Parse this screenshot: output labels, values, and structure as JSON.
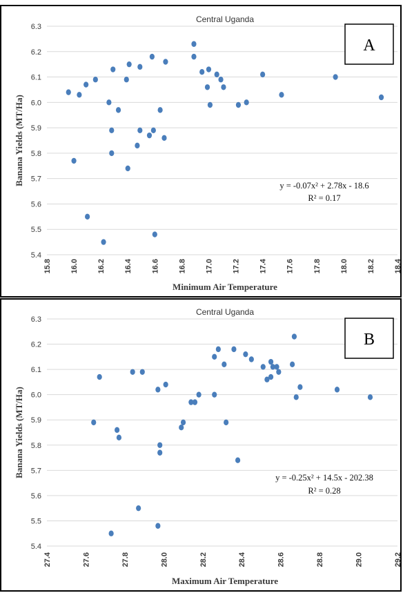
{
  "colors": {
    "points": "#4a7ebb",
    "trendline": "#1f497d",
    "grid": "#d9d9d9"
  },
  "chart_data": [
    {
      "panel": "A",
      "type": "scatter",
      "title": "Central Uganda",
      "xlabel": "Minimum Air Temperature",
      "ylabel": "Banana Yields (MT/Ha)",
      "xlim": [
        15.8,
        18.4
      ],
      "ylim": [
        5.4,
        6.3
      ],
      "x_ticks": [
        "15.8",
        "16.0",
        "16.2",
        "16.4",
        "16.6",
        "16.8",
        "17.0",
        "17.2",
        "17.4",
        "17.6",
        "17.8",
        "18.0",
        "18.2",
        "18.4"
      ],
      "y_ticks": [
        "5.4",
        "5.5",
        "5.6",
        "5.7",
        "5.8",
        "5.9",
        "6.0",
        "6.1",
        "6.2",
        "6.3"
      ],
      "grid": "horizontal",
      "points": [
        [
          15.96,
          6.04
        ],
        [
          16.0,
          5.77
        ],
        [
          16.04,
          6.03
        ],
        [
          16.09,
          6.07
        ],
        [
          16.1,
          5.55
        ],
        [
          16.16,
          6.09
        ],
        [
          16.22,
          5.45
        ],
        [
          16.26,
          6.0
        ],
        [
          16.28,
          5.8
        ],
        [
          16.28,
          5.89
        ],
        [
          16.29,
          6.13
        ],
        [
          16.33,
          5.97
        ],
        [
          16.39,
          6.09
        ],
        [
          16.4,
          5.74
        ],
        [
          16.41,
          6.15
        ],
        [
          16.47,
          5.83
        ],
        [
          16.49,
          6.14
        ],
        [
          16.49,
          5.89
        ],
        [
          16.56,
          5.87
        ],
        [
          16.58,
          6.18
        ],
        [
          16.59,
          5.89
        ],
        [
          16.6,
          5.48
        ],
        [
          16.64,
          5.97
        ],
        [
          16.67,
          5.86
        ],
        [
          16.68,
          6.16
        ],
        [
          16.89,
          6.23
        ],
        [
          16.89,
          6.18
        ],
        [
          16.95,
          6.12
        ],
        [
          16.99,
          6.06
        ],
        [
          17.0,
          6.13
        ],
        [
          17.01,
          5.99
        ],
        [
          17.06,
          6.11
        ],
        [
          17.09,
          6.09
        ],
        [
          17.11,
          6.06
        ],
        [
          17.22,
          5.99
        ],
        [
          17.28,
          6.0
        ],
        [
          17.4,
          6.11
        ],
        [
          17.54,
          6.03
        ],
        [
          17.94,
          6.1
        ],
        [
          18.28,
          6.02
        ]
      ],
      "trendline": {
        "type": "polynomial",
        "coefficients": [
          -0.07,
          2.78,
          -18.6
        ],
        "x_range": [
          15.96,
          18.28
        ]
      },
      "equation": "y = -0.07x² + 2.78x - 18.6",
      "r_squared": "R² = 0.17",
      "badge": "A"
    },
    {
      "panel": "B",
      "type": "scatter",
      "title": "Central Uganda",
      "xlabel": "Maximum Air Temperature",
      "ylabel": "Banana Yields (MT/Ha)",
      "xlim": [
        27.4,
        29.2
      ],
      "ylim": [
        5.4,
        6.3
      ],
      "x_ticks": [
        "27.4",
        "27.6",
        "27.8",
        "28.0",
        "28.2",
        "28.4",
        "28.6",
        "28.8",
        "29.0",
        "29.2"
      ],
      "y_ticks": [
        "5.4",
        "5.5",
        "5.6",
        "5.7",
        "5.8",
        "5.9",
        "6.0",
        "6.1",
        "6.2",
        "6.3"
      ],
      "grid": "horizontal",
      "points": [
        [
          27.64,
          5.89
        ],
        [
          27.67,
          6.07
        ],
        [
          27.73,
          5.45
        ],
        [
          27.76,
          5.86
        ],
        [
          27.77,
          5.83
        ],
        [
          27.84,
          6.09
        ],
        [
          27.87,
          5.55
        ],
        [
          27.89,
          6.09
        ],
        [
          27.97,
          5.48
        ],
        [
          27.97,
          6.02
        ],
        [
          27.98,
          5.8
        ],
        [
          27.98,
          5.77
        ],
        [
          28.01,
          6.04
        ],
        [
          28.09,
          5.87
        ],
        [
          28.1,
          5.89
        ],
        [
          28.14,
          5.97
        ],
        [
          28.16,
          5.97
        ],
        [
          28.18,
          6.0
        ],
        [
          28.26,
          6.0
        ],
        [
          28.26,
          6.15
        ],
        [
          28.28,
          6.18
        ],
        [
          28.31,
          6.12
        ],
        [
          28.32,
          5.89
        ],
        [
          28.36,
          6.18
        ],
        [
          28.38,
          5.74
        ],
        [
          28.42,
          6.16
        ],
        [
          28.45,
          6.14
        ],
        [
          28.51,
          6.11
        ],
        [
          28.53,
          6.06
        ],
        [
          28.55,
          6.13
        ],
        [
          28.55,
          6.07
        ],
        [
          28.56,
          6.11
        ],
        [
          28.58,
          6.11
        ],
        [
          28.59,
          6.09
        ],
        [
          28.66,
          6.12
        ],
        [
          28.67,
          6.23
        ],
        [
          28.68,
          5.99
        ],
        [
          28.7,
          6.03
        ],
        [
          28.89,
          6.02
        ],
        [
          29.06,
          5.99
        ]
      ],
      "trendline": {
        "type": "polynomial",
        "coefficients": [
          -0.25,
          14.5,
          -202.38
        ],
        "x_range": [
          27.63,
          29.06
        ],
        "y_offset": 0.3
      },
      "equation": "y = -0.25x² + 14.5x - 202.38",
      "r_squared": "R² = 0.28",
      "badge": "B"
    }
  ]
}
